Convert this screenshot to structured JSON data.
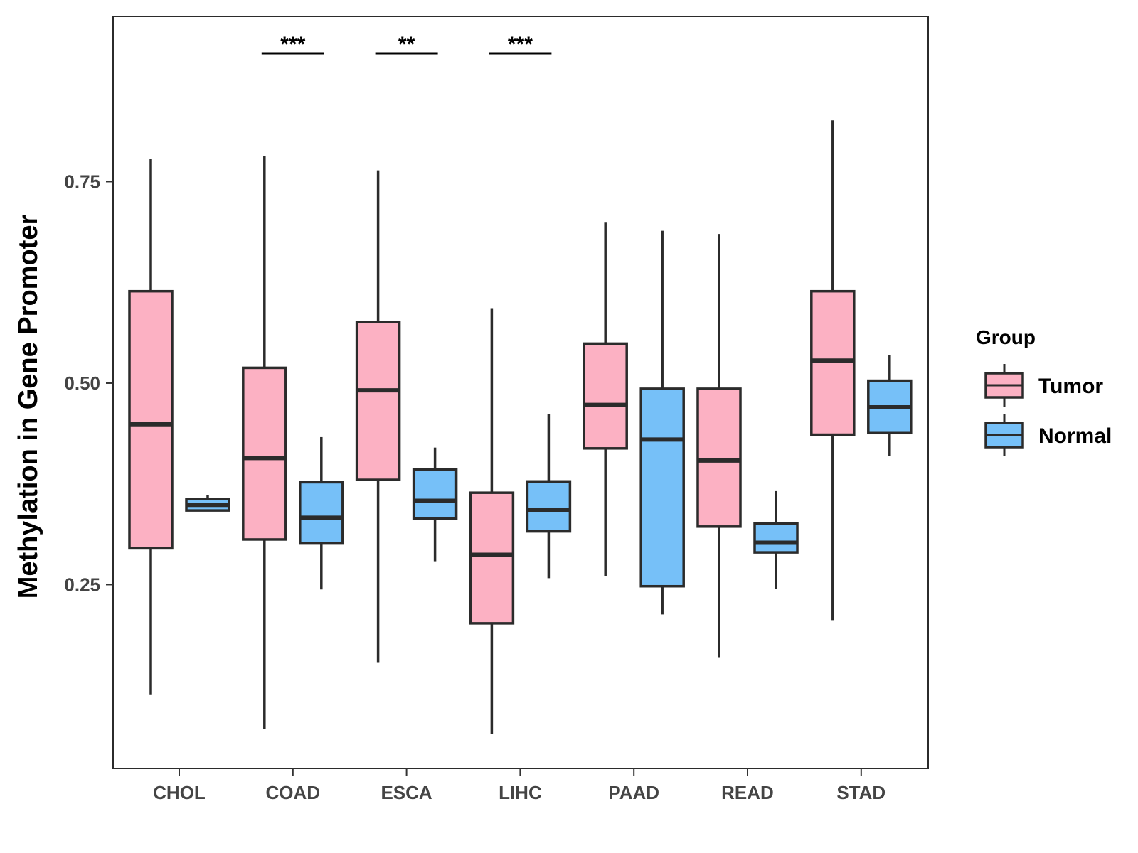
{
  "chart_data": {
    "type": "boxplot",
    "title": "",
    "xlabel": "",
    "ylabel": "Methylation in Gene Promoter",
    "ylim": [
      0.022,
      0.955
    ],
    "yticks": [
      0.25,
      0.5,
      0.75
    ],
    "ytick_labels": [
      "0.25",
      "0.50",
      "0.75"
    ],
    "categories": [
      "CHOL",
      "COAD",
      "ESCA",
      "LIHC",
      "PAAD",
      "READ",
      "STAD"
    ],
    "grid": false,
    "legend": {
      "title": "Group",
      "position": "right",
      "entries": [
        {
          "name": "Tumor",
          "color": "#FCB1C3"
        },
        {
          "name": "Normal",
          "color": "#76C0F8"
        }
      ]
    },
    "series": [
      {
        "name": "Tumor",
        "color": "#FCB1C3",
        "boxes": [
          {
            "category": "CHOL",
            "min": 0.113,
            "q1": 0.295,
            "median": 0.449,
            "q3": 0.614,
            "max": 0.778
          },
          {
            "category": "COAD",
            "min": 0.071,
            "q1": 0.306,
            "median": 0.407,
            "q3": 0.519,
            "max": 0.782
          },
          {
            "category": "ESCA",
            "min": 0.153,
            "q1": 0.38,
            "median": 0.491,
            "q3": 0.576,
            "max": 0.764
          },
          {
            "category": "LIHC",
            "min": 0.065,
            "q1": 0.202,
            "median": 0.287,
            "q3": 0.364,
            "max": 0.593
          },
          {
            "category": "PAAD",
            "min": 0.261,
            "q1": 0.419,
            "median": 0.473,
            "q3": 0.549,
            "max": 0.699
          },
          {
            "category": "READ",
            "min": 0.16,
            "q1": 0.322,
            "median": 0.404,
            "q3": 0.493,
            "max": 0.685
          },
          {
            "category": "STAD",
            "min": 0.206,
            "q1": 0.436,
            "median": 0.528,
            "q3": 0.614,
            "max": 0.826
          }
        ]
      },
      {
        "name": "Normal",
        "color": "#76C0F8",
        "boxes": [
          {
            "category": "CHOL",
            "min": 0.342,
            "q1": 0.342,
            "median": 0.349,
            "q3": 0.356,
            "max": 0.361
          },
          {
            "category": "COAD",
            "min": 0.244,
            "q1": 0.301,
            "median": 0.333,
            "q3": 0.377,
            "max": 0.433
          },
          {
            "category": "ESCA",
            "min": 0.279,
            "q1": 0.332,
            "median": 0.354,
            "q3": 0.393,
            "max": 0.42
          },
          {
            "category": "LIHC",
            "min": 0.258,
            "q1": 0.316,
            "median": 0.343,
            "q3": 0.378,
            "max": 0.462
          },
          {
            "category": "PAAD",
            "min": 0.213,
            "q1": 0.248,
            "median": 0.43,
            "q3": 0.493,
            "max": 0.689
          },
          {
            "category": "READ",
            "min": 0.245,
            "q1": 0.29,
            "median": 0.302,
            "q3": 0.326,
            "max": 0.366
          },
          {
            "category": "STAD",
            "min": 0.41,
            "q1": 0.438,
            "median": 0.47,
            "q3": 0.503,
            "max": 0.535
          }
        ]
      }
    ],
    "annotations": [
      {
        "category": "COAD",
        "label": "***"
      },
      {
        "category": "ESCA",
        "label": "**"
      },
      {
        "category": "LIHC",
        "label": "***"
      }
    ]
  }
}
